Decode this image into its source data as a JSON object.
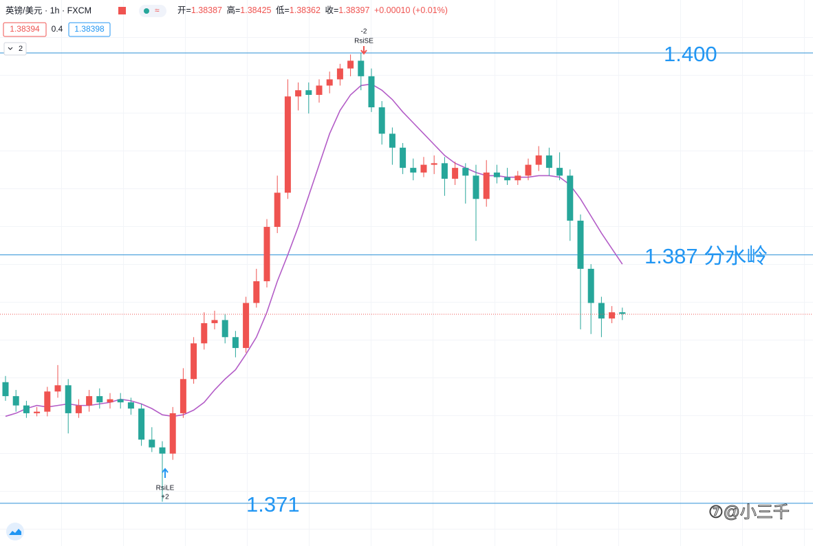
{
  "chart_data": {
    "type": "candlestick",
    "symbol": "英镑/美元 · 1h · FXCM",
    "legend": [
      {
        "label": "开=",
        "value": "1.38387"
      },
      {
        "label": "高=",
        "value": "1.38425"
      },
      {
        "label": "低=",
        "value": "1.38362"
      },
      {
        "label": "收=",
        "value": "1.38397"
      }
    ],
    "change": "+0.00010 (+0.01%)",
    "bid": "1.38394",
    "spread": "0.4",
    "ask": "1.38398",
    "indicator_count": "2",
    "up_color": "#ef5350",
    "down_color": "#26a69a",
    "ylim": [
      1.36825,
      1.40341
    ],
    "open": [
      1.3788,
      1.3779,
      1.3773,
      1.3768,
      1.3769,
      1.3782,
      1.3786,
      1.3768,
      1.3773,
      1.3779,
      1.3775,
      1.3777,
      1.3775,
      1.3771,
      1.3751,
      1.3746,
      1.3742,
      1.3768,
      1.379,
      1.3813,
      1.3826,
      1.3828,
      1.3817,
      1.381,
      1.3839,
      1.3853,
      1.3888,
      1.391,
      1.3972,
      1.3976,
      1.3973,
      1.3979,
      1.3983,
      1.399,
      1.3995,
      1.3985,
      1.3965,
      1.3948,
      1.3939,
      1.3926,
      1.3923,
      1.3928,
      1.3929,
      1.3919,
      1.3926,
      1.3921,
      1.3906,
      1.3923,
      1.392,
      1.3918,
      1.3921,
      1.3928,
      1.3934,
      1.3926,
      1.3921,
      1.3892,
      1.3861,
      1.3839,
      1.3829,
      1.3833
    ],
    "high": [
      1.3792,
      1.3783,
      1.3776,
      1.3772,
      1.3785,
      1.3799,
      1.379,
      1.3777,
      1.3783,
      1.3784,
      1.3781,
      1.3781,
      1.3778,
      1.3774,
      1.3759,
      1.375,
      1.3772,
      1.3797,
      1.3817,
      1.3833,
      1.3834,
      1.3832,
      1.3821,
      1.3843,
      1.3861,
      1.3893,
      1.3921,
      1.3983,
      1.3981,
      1.3981,
      1.3983,
      1.3988,
      1.3993,
      1.3999,
      1.4,
      1.399,
      1.3969,
      1.3952,
      1.3942,
      1.3932,
      1.3933,
      1.3934,
      1.3933,
      1.393,
      1.3929,
      1.3928,
      1.3931,
      1.3928,
      1.3926,
      1.3924,
      1.3932,
      1.394,
      1.3939,
      1.3936,
      1.3925,
      1.3896,
      1.3864,
      1.3843,
      1.3837,
      1.3836
    ],
    "low": [
      1.3776,
      1.3769,
      1.3765,
      1.3766,
      1.3766,
      1.3778,
      1.3755,
      1.3765,
      1.3769,
      1.3771,
      1.3771,
      1.3771,
      1.3767,
      1.3747,
      1.3743,
      1.3711,
      1.3738,
      1.3765,
      1.3787,
      1.3809,
      1.3822,
      1.3813,
      1.3804,
      1.3807,
      1.3836,
      1.3849,
      1.3884,
      1.3906,
      1.3963,
      1.3961,
      1.3968,
      1.3974,
      1.3979,
      1.3985,
      1.3976,
      1.3962,
      1.3941,
      1.3928,
      1.3922,
      1.3918,
      1.392,
      1.3922,
      1.3908,
      1.3915,
      1.3903,
      1.3879,
      1.3901,
      1.3916,
      1.3915,
      1.3915,
      1.3918,
      1.3924,
      1.3921,
      1.3918,
      1.3879,
      1.3822,
      1.3819,
      1.3817,
      1.3826,
      1.3828
    ],
    "close": [
      1.3779,
      1.3773,
      1.3768,
      1.3769,
      1.3782,
      1.3786,
      1.3768,
      1.3773,
      1.3779,
      1.3775,
      1.3777,
      1.3775,
      1.3771,
      1.3751,
      1.3746,
      1.3742,
      1.3768,
      1.379,
      1.3813,
      1.3826,
      1.3828,
      1.3817,
      1.381,
      1.3839,
      1.3853,
      1.3888,
      1.391,
      1.3972,
      1.3976,
      1.3973,
      1.3979,
      1.3983,
      1.399,
      1.3995,
      1.3985,
      1.3965,
      1.3948,
      1.3939,
      1.3926,
      1.3923,
      1.3928,
      1.3929,
      1.3919,
      1.3926,
      1.3921,
      1.3906,
      1.3923,
      1.392,
      1.3918,
      1.3921,
      1.3928,
      1.3934,
      1.3926,
      1.3921,
      1.3892,
      1.3861,
      1.3839,
      1.3829,
      1.3833,
      1.3832
    ],
    "ma": {
      "color": "#b35cc7",
      "values": [
        1.3766,
        1.3768,
        1.3771,
        1.3773,
        1.3772,
        1.3773,
        1.3774,
        1.3773,
        1.3773,
        1.3774,
        1.3775,
        1.3777,
        1.3776,
        1.3774,
        1.3771,
        1.3767,
        1.3766,
        1.3767,
        1.377,
        1.3775,
        1.3783,
        1.379,
        1.3796,
        1.3806,
        1.3817,
        1.3833,
        1.3853,
        1.387,
        1.3888,
        1.3908,
        1.3928,
        1.3948,
        1.3963,
        1.3973,
        1.3979,
        1.398,
        1.3976,
        1.397,
        1.3962,
        1.3955,
        1.3948,
        1.3941,
        1.3934,
        1.3929,
        1.3926,
        1.3923,
        1.3921,
        1.3921,
        1.392,
        1.392,
        1.392,
        1.3921,
        1.3921,
        1.392,
        1.3915,
        1.3906,
        1.3895,
        1.3884,
        1.3874,
        1.3864
      ]
    },
    "levels": [
      {
        "value": 1.4,
        "label": "1.400"
      },
      {
        "value": 1.387,
        "label": "1.387 分水岭"
      },
      {
        "value": 1.371,
        "label": "1.371"
      }
    ],
    "level_color": "#2a8fd6",
    "signals": [
      {
        "label": "RsiSE",
        "qty": "-2"
      },
      {
        "label": "RsiLE",
        "qty": "+2"
      }
    ]
  },
  "watermark": "⑦@小三千"
}
